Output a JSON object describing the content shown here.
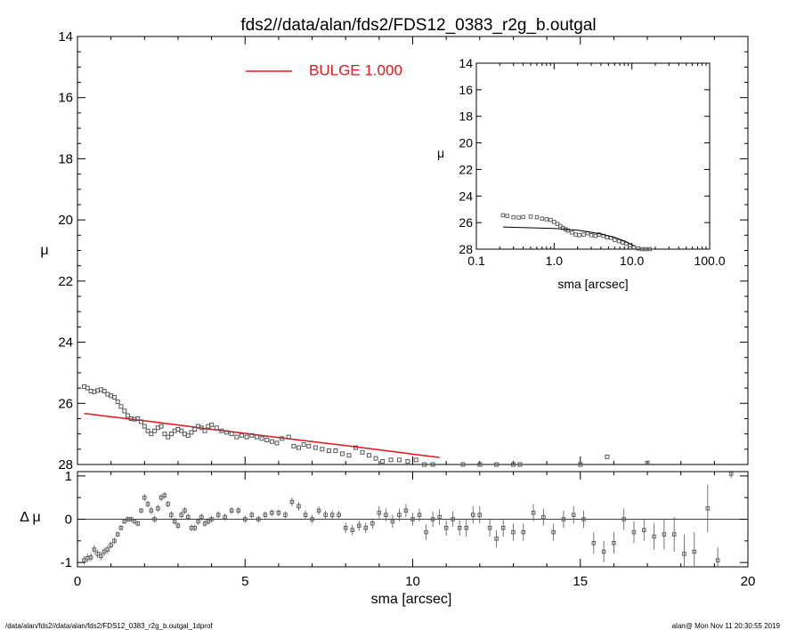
{
  "title": "fds2//data/alan/fds2/FDS12_0383_r2g_b.outgal",
  "footer": {
    "left": "/data/alan/fds2//data/alan/fds2/FDS12_0383_r2g_b.outgal_1dprof",
    "right": "alan@  Mon Nov 11 20:30:55 2019"
  },
  "colors": {
    "model": "#e8131b",
    "data": "#555555",
    "axis": "#000000"
  },
  "chart_data": [
    {
      "type": "scatter",
      "panel": "main",
      "ylabel": "μ",
      "xlim": [
        0,
        20
      ],
      "ylim": [
        28,
        14
      ],
      "y_reversed": true,
      "xticks": [
        0,
        5,
        10,
        15,
        20
      ],
      "yticks": [
        14,
        16,
        18,
        20,
        22,
        24,
        26,
        28
      ],
      "legend": {
        "placement": "top-left",
        "label": "BULGE  1.000",
        "color": "#e8131b"
      },
      "series": [
        {
          "name": "BULGE  1.000",
          "style": "line",
          "x": [
            0.2,
            1,
            2,
            3,
            4,
            5,
            6,
            7,
            8,
            9,
            10,
            10.8
          ],
          "y": [
            26.33,
            26.44,
            26.57,
            26.71,
            26.85,
            26.98,
            27.12,
            27.25,
            27.38,
            27.52,
            27.66,
            27.77
          ]
        },
        {
          "style": "markers",
          "x": [
            0.2,
            0.3,
            0.4,
            0.5,
            0.6,
            0.7,
            0.8,
            0.9,
            1.0,
            1.1,
            1.2,
            1.3,
            1.4,
            1.5,
            1.6,
            1.7,
            1.8,
            1.9,
            2.0,
            2.1,
            2.2,
            2.3,
            2.4,
            2.5,
            2.6,
            2.7,
            2.8,
            2.9,
            3.0,
            3.1,
            3.2,
            3.3,
            3.4,
            3.5,
            3.6,
            3.7,
            3.8,
            3.9,
            4.0,
            4.15,
            4.3,
            4.45,
            4.6,
            4.75,
            4.9,
            5.05,
            5.2,
            5.35,
            5.5,
            5.65,
            5.8,
            5.95,
            6.1,
            6.3,
            6.45,
            6.6,
            6.75,
            6.9,
            7.1,
            7.3,
            7.5,
            7.7,
            7.9,
            8.1,
            8.3,
            8.5,
            8.7,
            8.9,
            9.1,
            9.35,
            9.6,
            9.85,
            10.1,
            10.35,
            10.6,
            11.5,
            12.0,
            12.5,
            13.0,
            13.2,
            15.0,
            15.8,
            17.0
          ],
          "y": [
            25.45,
            25.5,
            25.6,
            25.62,
            25.58,
            25.55,
            25.6,
            25.7,
            25.75,
            25.8,
            25.95,
            26.1,
            26.25,
            26.4,
            26.5,
            26.52,
            26.5,
            26.6,
            26.75,
            26.9,
            27.0,
            26.9,
            26.8,
            26.75,
            27.0,
            27.1,
            27.0,
            26.9,
            26.85,
            26.9,
            27.0,
            27.05,
            26.95,
            26.85,
            26.75,
            26.8,
            26.9,
            26.75,
            26.7,
            26.8,
            26.9,
            26.95,
            27.0,
            27.1,
            27.05,
            27.1,
            27.05,
            27.1,
            27.15,
            27.2,
            27.25,
            27.3,
            27.15,
            27.1,
            27.4,
            27.45,
            27.35,
            27.4,
            27.45,
            27.5,
            27.55,
            27.55,
            27.65,
            27.7,
            27.45,
            27.6,
            27.7,
            27.8,
            27.9,
            27.85,
            27.85,
            27.9,
            27.85,
            28.0,
            28.0,
            28.0,
            28.0,
            28.0,
            28.0,
            28.0,
            28.0,
            27.75,
            27.95
          ]
        }
      ]
    },
    {
      "type": "scatter",
      "panel": "inset",
      "ylabel": "μ",
      "xlabel": "sma [arcsec]",
      "xscale": "log",
      "xlim": [
        0.1,
        100
      ],
      "ylim": [
        28,
        14
      ],
      "y_reversed": true,
      "xticks": [
        "0.1",
        "1.0",
        "10.0",
        "100.0"
      ],
      "yticks": [
        14,
        16,
        18,
        20,
        22,
        24,
        26,
        28
      ],
      "series": [
        {
          "style": "markers",
          "x": [
            0.22,
            0.25,
            0.3,
            0.35,
            0.4,
            0.5,
            0.6,
            0.7,
            0.8,
            0.9,
            1.0,
            1.1,
            1.2,
            1.3,
            1.4,
            1.5,
            1.7,
            1.9,
            2.1,
            2.4,
            2.7,
            3.0,
            3.4,
            3.8,
            4.3,
            4.8,
            5.4,
            6.0,
            6.8,
            7.6,
            8.5,
            9.5,
            10.6,
            12.0,
            13.5,
            15.0,
            17.0
          ],
          "y": [
            25.45,
            25.5,
            25.6,
            25.62,
            25.58,
            25.55,
            25.6,
            25.7,
            25.75,
            25.8,
            25.95,
            26.1,
            26.25,
            26.4,
            26.5,
            26.6,
            26.75,
            26.9,
            26.95,
            26.9,
            26.8,
            26.95,
            27.0,
            26.9,
            27.0,
            27.1,
            27.15,
            27.3,
            27.4,
            27.5,
            27.6,
            27.7,
            27.85,
            27.95,
            28.0,
            28.0,
            28.0
          ]
        },
        {
          "style": "line",
          "x": [
            0.22,
            1,
            2,
            4,
            6,
            8,
            10.8
          ],
          "y": [
            26.33,
            26.44,
            26.57,
            26.85,
            27.12,
            27.38,
            27.77
          ]
        }
      ]
    },
    {
      "type": "scatter",
      "panel": "residual",
      "ylabel": "Δ μ",
      "xlabel": "sma [arcsec]",
      "xlim": [
        0,
        20
      ],
      "ylim": [
        -1.1,
        1.1
      ],
      "xticks": [
        0,
        5,
        10,
        15,
        20
      ],
      "yticks": [
        -1,
        0,
        1
      ],
      "reference_line": 0,
      "series": [
        {
          "style": "errorbar",
          "x": [
            0.2,
            0.3,
            0.4,
            0.5,
            0.6,
            0.7,
            0.8,
            0.9,
            1.0,
            1.1,
            1.2,
            1.3,
            1.4,
            1.5,
            1.6,
            1.7,
            1.8,
            1.9,
            2.0,
            2.1,
            2.2,
            2.3,
            2.4,
            2.5,
            2.6,
            2.7,
            2.8,
            2.9,
            3.0,
            3.1,
            3.2,
            3.3,
            3.4,
            3.5,
            3.6,
            3.7,
            3.8,
            3.9,
            4.0,
            4.2,
            4.4,
            4.6,
            4.8,
            5.0,
            5.2,
            5.4,
            5.6,
            5.8,
            6.0,
            6.2,
            6.4,
            6.6,
            6.8,
            7.0,
            7.2,
            7.4,
            7.6,
            7.8,
            8.0,
            8.2,
            8.4,
            8.6,
            8.8,
            9.0,
            9.2,
            9.4,
            9.6,
            9.8,
            10.0,
            10.2,
            10.4,
            10.6,
            10.8,
            11.0,
            11.2,
            11.4,
            11.6,
            11.8,
            12.0,
            12.3,
            12.5,
            12.7,
            13.0,
            13.3,
            13.6,
            13.9,
            14.2,
            14.5,
            14.8,
            15.1,
            15.4,
            15.7,
            16.0,
            16.3,
            16.6,
            16.9,
            17.2,
            17.5,
            17.8,
            18.1,
            18.4,
            18.8,
            19.1,
            19.5
          ],
          "y": [
            -0.95,
            -0.9,
            -0.88,
            -0.7,
            -0.8,
            -0.85,
            -0.75,
            -0.7,
            -0.6,
            -0.5,
            -0.35,
            -0.2,
            -0.05,
            0.0,
            0.0,
            -0.05,
            -0.1,
            0.2,
            0.5,
            0.35,
            0.2,
            0.0,
            0.25,
            0.5,
            0.55,
            0.35,
            0.1,
            -0.05,
            -0.15,
            0.1,
            0.2,
            0.05,
            -0.2,
            -0.2,
            -0.05,
            0.05,
            -0.1,
            -0.05,
            0.0,
            0.1,
            0.05,
            0.2,
            0.2,
            0.0,
            0.1,
            0.0,
            0.1,
            0.15,
            0.15,
            0.1,
            0.4,
            0.3,
            0.1,
            0.0,
            0.2,
            0.1,
            0.1,
            0.1,
            -0.2,
            -0.25,
            -0.15,
            -0.2,
            -0.1,
            0.15,
            0.1,
            -0.05,
            0.1,
            0.2,
            0.0,
            0.1,
            -0.3,
            0.0,
            0.05,
            -0.2,
            0.0,
            -0.2,
            -0.2,
            0.1,
            0.1,
            -0.2,
            -0.45,
            -0.2,
            -0.3,
            -0.3,
            0.15,
            0.05,
            -0.3,
            0.0,
            0.1,
            0.0,
            -0.55,
            -0.75,
            -0.55,
            0.0,
            -0.3,
            -0.25,
            -0.4,
            -0.35,
            -0.35,
            -0.8,
            -0.75,
            0.25,
            -0.95,
            1.05
          ],
          "err": [
            0.1,
            0.1,
            0.1,
            0.1,
            0.1,
            0.1,
            0.1,
            0.1,
            0.08,
            0.07,
            0.06,
            0.06,
            0.06,
            0.06,
            0.06,
            0.06,
            0.06,
            0.06,
            0.08,
            0.08,
            0.08,
            0.08,
            0.08,
            0.08,
            0.08,
            0.08,
            0.08,
            0.08,
            0.08,
            0.08,
            0.08,
            0.08,
            0.08,
            0.08,
            0.08,
            0.08,
            0.08,
            0.08,
            0.08,
            0.08,
            0.08,
            0.08,
            0.08,
            0.08,
            0.08,
            0.08,
            0.08,
            0.08,
            0.08,
            0.08,
            0.1,
            0.1,
            0.1,
            0.1,
            0.1,
            0.1,
            0.1,
            0.1,
            0.12,
            0.12,
            0.12,
            0.12,
            0.12,
            0.15,
            0.15,
            0.15,
            0.15,
            0.15,
            0.15,
            0.15,
            0.18,
            0.18,
            0.18,
            0.18,
            0.18,
            0.18,
            0.2,
            0.2,
            0.2,
            0.2,
            0.2,
            0.2,
            0.2,
            0.2,
            0.2,
            0.2,
            0.2,
            0.2,
            0.2,
            0.2,
            0.25,
            0.25,
            0.25,
            0.25,
            0.25,
            0.25,
            0.3,
            0.35,
            0.4,
            0.45,
            0.45,
            0.55,
            0.3,
            0.1
          ]
        }
      ]
    }
  ]
}
